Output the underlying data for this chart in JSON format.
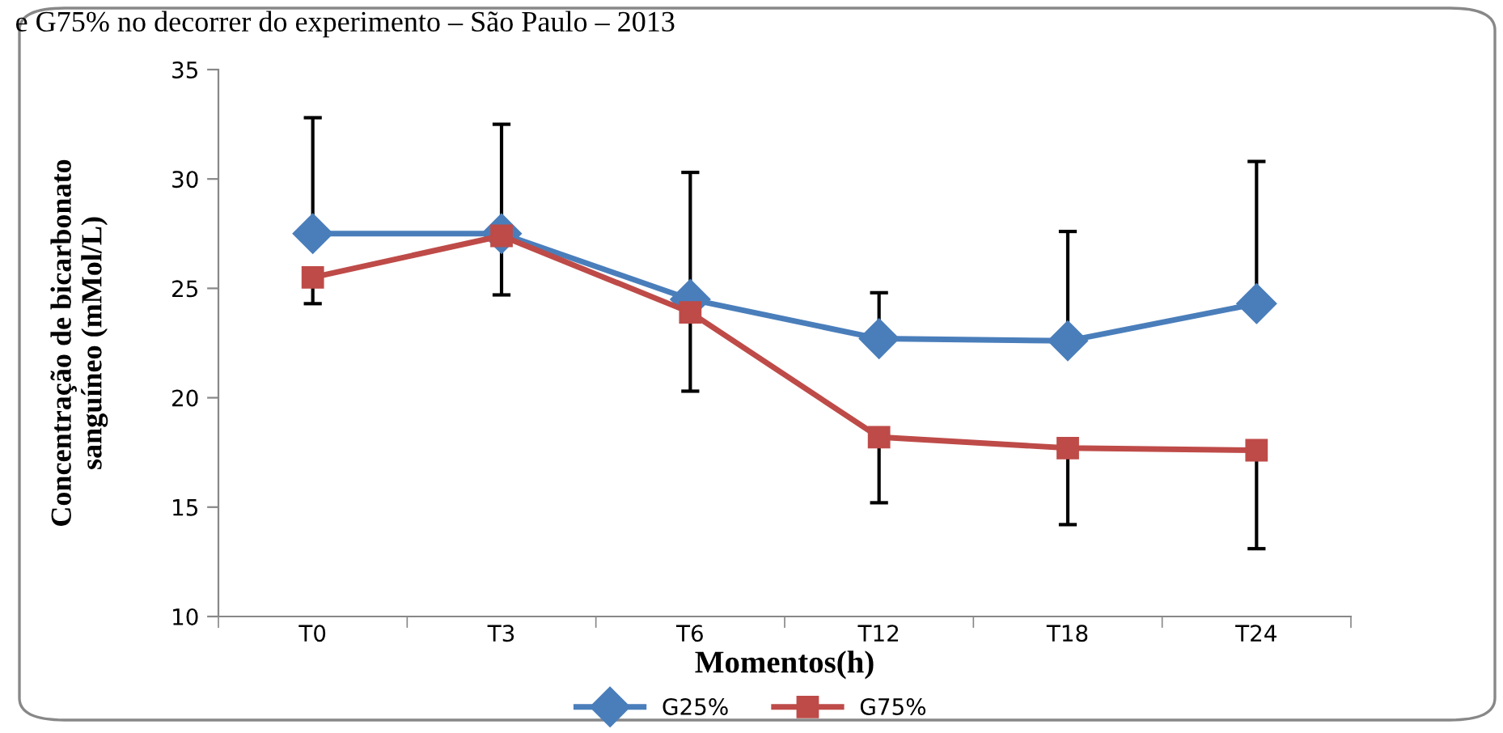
{
  "chart_data": {
    "type": "line",
    "annotations": [
      "e G75% no decorrer do experimento – São Paulo – 2013"
    ],
    "xlabel": "Momentos(h)",
    "ylabel": "Concentração de bicarbonato\nsanguíneo (mMol/L)",
    "categories": [
      "T0",
      "T3",
      "T6",
      "T12",
      "T18",
      "T24"
    ],
    "series": [
      {
        "name": "G25%",
        "color": "#4a7ebb",
        "marker": "diamond",
        "values": [
          27.5,
          27.5,
          24.5,
          22.7,
          22.6,
          24.3
        ],
        "errors": [
          [
            27.5,
            32.8
          ],
          [
            27.5,
            32.5
          ],
          [
            24.5,
            30.3
          ],
          [
            22.7,
            24.8
          ],
          [
            22.6,
            27.6
          ],
          [
            24.3,
            30.8
          ]
        ]
      },
      {
        "name": "G75%",
        "color": "#be4b48",
        "marker": "square",
        "values": [
          25.5,
          27.4,
          23.9,
          18.2,
          17.7,
          17.6
        ],
        "errors": [
          [
            24.3,
            25.5
          ],
          [
            24.7,
            27.4
          ],
          [
            20.3,
            23.9
          ],
          [
            15.2,
            18.2
          ],
          [
            14.2,
            17.7
          ],
          [
            13.1,
            17.6
          ]
        ]
      }
    ],
    "ylim": [
      10,
      35
    ],
    "yticks": [
      10,
      15,
      20,
      25,
      30,
      35
    ],
    "grid": false,
    "legend": "bottom"
  }
}
